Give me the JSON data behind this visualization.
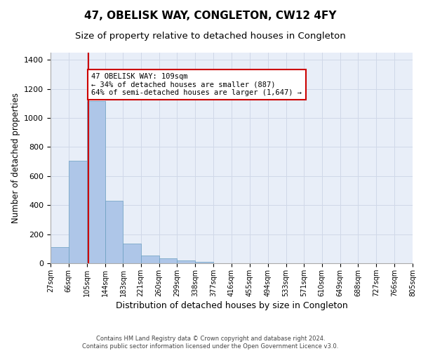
{
  "title": "47, OBELISK WAY, CONGLETON, CW12 4FY",
  "subtitle": "Size of property relative to detached houses in Congleton",
  "xlabel": "Distribution of detached houses by size in Congleton",
  "ylabel": "Number of detached properties",
  "bin_edges": [
    27,
    66,
    105,
    144,
    183,
    221,
    260,
    299,
    338,
    377,
    416,
    455,
    494,
    533,
    571,
    610,
    649,
    688,
    727,
    766,
    805
  ],
  "bar_heights": [
    110,
    705,
    1115,
    430,
    135,
    52,
    32,
    18,
    12,
    0,
    0,
    0,
    0,
    0,
    0,
    0,
    0,
    0,
    0,
    0
  ],
  "bar_color": "#aec6e8",
  "bar_edge_color": "#6a9fc0",
  "grid_color": "#d0d8e8",
  "background_color": "#e8eef8",
  "red_line_x": 109,
  "annotation_text": "47 OBELISK WAY: 109sqm\n← 34% of detached houses are smaller (887)\n64% of semi-detached houses are larger (1,647) →",
  "annotation_box_color": "#ffffff",
  "annotation_box_edge_color": "#cc0000",
  "ylim": [
    0,
    1450
  ],
  "yticks": [
    0,
    200,
    400,
    600,
    800,
    1000,
    1200,
    1400
  ],
  "footer_line1": "Contains HM Land Registry data © Crown copyright and database right 2024.",
  "footer_line2": "Contains public sector information licensed under the Open Government Licence v3.0."
}
